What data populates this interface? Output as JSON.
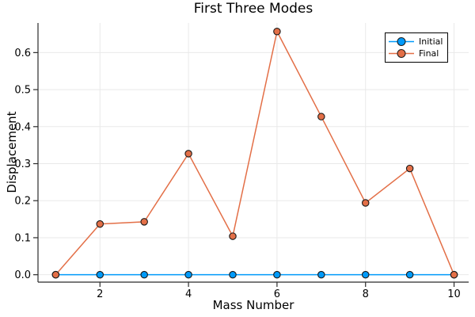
{
  "chart_data": {
    "type": "line",
    "title": "First Three Modes",
    "xlabel": "Mass Number",
    "ylabel": "Displacement",
    "x": [
      1,
      2,
      3,
      4,
      5,
      6,
      7,
      8,
      9,
      10
    ],
    "series": [
      {
        "name": "Initial",
        "color": "#009AFA",
        "marker": "circle",
        "values": [
          0.0,
          0.0,
          0.0,
          0.0,
          0.0,
          0.0,
          0.0,
          0.0,
          0.0,
          0.0
        ]
      },
      {
        "name": "Final",
        "color": "#E36F47",
        "marker": "circle",
        "values": [
          0.0,
          0.137,
          0.143,
          0.327,
          0.104,
          0.657,
          0.427,
          0.194,
          0.287,
          0.0
        ]
      }
    ],
    "xlim": [
      0.6,
      10.33
    ],
    "ylim": [
      -0.02,
      0.68
    ],
    "xticks": [
      2,
      4,
      6,
      8,
      10
    ],
    "xtick_labels": [
      "2",
      "4",
      "6",
      "8",
      "10"
    ],
    "yticks": [
      0.0,
      0.1,
      0.2,
      0.3,
      0.4,
      0.5,
      0.6
    ],
    "ytick_labels": [
      "0.0",
      "0.1",
      "0.2",
      "0.3",
      "0.4",
      "0.5",
      "0.6"
    ],
    "grid": true,
    "legend": {
      "position": "top-right",
      "entries": [
        "Initial",
        "Final"
      ]
    },
    "colors": {
      "background": "#FFFFFF",
      "grid": "#E9E9E9",
      "spine": "#2B2B2B",
      "marker_stroke": "#1A1A1A",
      "text": "#000000"
    }
  }
}
